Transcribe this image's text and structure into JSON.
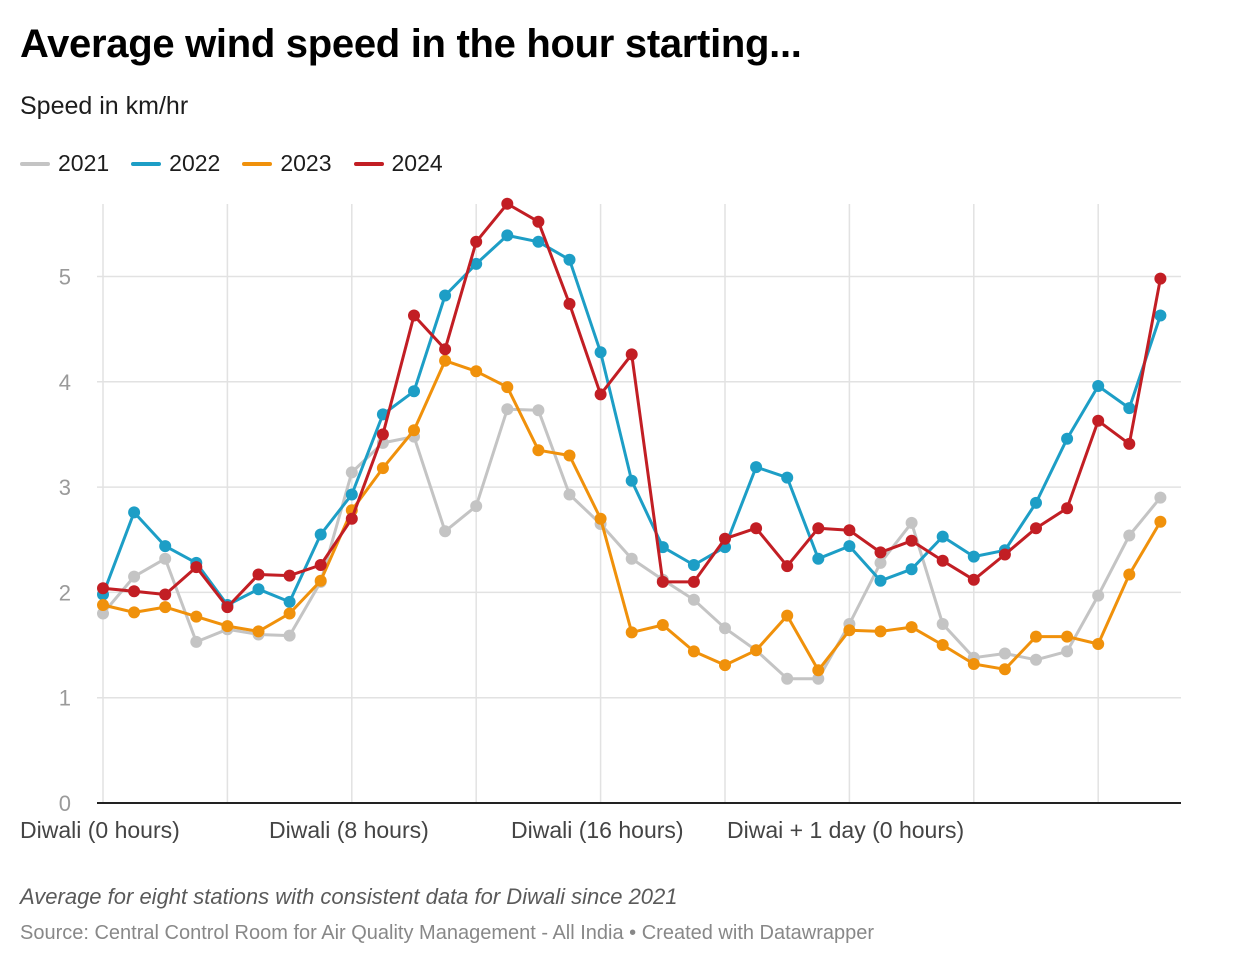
{
  "chart_data": {
    "type": "line",
    "title": "Average wind speed in the hour starting...",
    "subtitle": "Speed in km/hr",
    "xlabel": "",
    "ylabel": "",
    "ylim": [
      0,
      5.7
    ],
    "yticks": [
      "0",
      "1",
      "2",
      "3",
      "4",
      "5"
    ],
    "grid": true,
    "legend_position": "top-left",
    "x": [
      0,
      1,
      2,
      3,
      4,
      5,
      6,
      7,
      8,
      9,
      10,
      11,
      12,
      13,
      14,
      15,
      16,
      17,
      18,
      19,
      20,
      21,
      22,
      23,
      24,
      25,
      26,
      27,
      28,
      29,
      30,
      31,
      32,
      33,
      34
    ],
    "xtick_labels": [
      {
        "x": 0,
        "label": "Diwali (0 hours)"
      },
      {
        "x": 8,
        "label": "Diwali (8 hours)"
      },
      {
        "x": 16,
        "label": "Diwali (16 hours)"
      },
      {
        "x": 24,
        "label": "Diwai + 1 day (0 hours)"
      }
    ],
    "gridline_x": [
      0,
      4,
      8,
      12,
      16,
      20,
      24,
      28,
      32
    ],
    "series": [
      {
        "name": "2021",
        "color": "#c4c4c4",
        "values": [
          1.8,
          2.15,
          2.32,
          1.53,
          1.65,
          1.6,
          1.59,
          2.1,
          3.14,
          3.42,
          3.48,
          2.58,
          2.82,
          3.74,
          3.73,
          2.93,
          2.65,
          2.32,
          2.12,
          1.93,
          1.66,
          1.45,
          1.18,
          1.18,
          1.7,
          2.28,
          2.66,
          1.7,
          1.38,
          1.42,
          1.36,
          1.44,
          1.97,
          2.54,
          2.9
        ]
      },
      {
        "name": "2022",
        "color": "#1d9ec6",
        "values": [
          1.98,
          2.76,
          2.44,
          2.28,
          1.88,
          2.03,
          1.91,
          2.55,
          2.93,
          3.69,
          3.91,
          4.82,
          5.12,
          5.39,
          5.33,
          5.16,
          4.28,
          3.06,
          2.43,
          2.26,
          2.43,
          3.19,
          3.09,
          2.32,
          2.44,
          2.11,
          2.22,
          2.53,
          2.34,
          2.4,
          2.85,
          3.46,
          3.96,
          3.75,
          4.63
        ]
      },
      {
        "name": "2023",
        "color": "#f0910b",
        "values": [
          1.88,
          1.81,
          1.86,
          1.77,
          1.68,
          1.63,
          1.8,
          2.11,
          2.78,
          3.18,
          3.54,
          4.2,
          4.1,
          3.95,
          3.35,
          3.3,
          2.7,
          1.62,
          1.69,
          1.44,
          1.31,
          1.45,
          1.78,
          1.26,
          1.64,
          1.63,
          1.67,
          1.5,
          1.32,
          1.27,
          1.58,
          1.58,
          1.51,
          2.17,
          2.67
        ]
      },
      {
        "name": "2024",
        "color": "#c21e24",
        "values": [
          2.04,
          2.01,
          1.98,
          2.24,
          1.86,
          2.17,
          2.16,
          2.26,
          2.7,
          3.5,
          4.63,
          4.31,
          5.33,
          5.69,
          5.52,
          4.74,
          3.88,
          4.26,
          2.1,
          2.1,
          2.51,
          2.61,
          2.25,
          2.61,
          2.59,
          2.38,
          2.49,
          2.3,
          2.12,
          2.36,
          2.61,
          2.8,
          3.63,
          3.41,
          4.98
        ]
      }
    ]
  },
  "note": "Average for eight stations with consistent data for Diwali since 2021",
  "source": "Source: Central Control Room for Air Quality Management - All India • Created with Datawrapper"
}
